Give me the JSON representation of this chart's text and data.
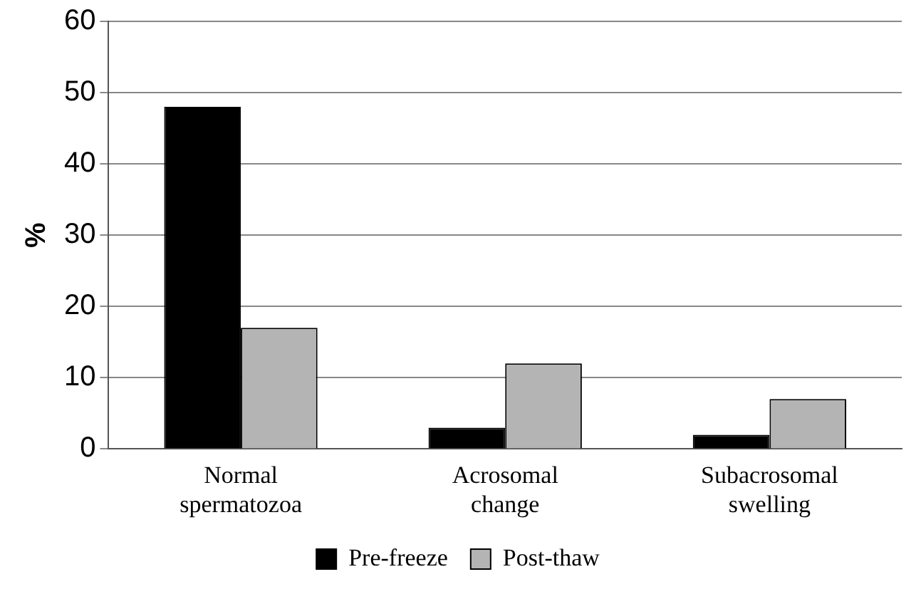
{
  "chart_data": {
    "type": "bar",
    "ylabel": "%",
    "categories": [
      "Normal spermatozoa",
      "Acrosomal change",
      "Subacrosomal swelling"
    ],
    "series": [
      {
        "name": "Pre-freeze",
        "color": "#000000",
        "values": [
          48,
          3,
          2
        ]
      },
      {
        "name": "Post-thaw",
        "color": "#b4b4b4",
        "values": [
          17,
          12,
          7
        ]
      }
    ],
    "ylim": [
      0,
      60
    ],
    "yticks": [
      0,
      10,
      20,
      30,
      40,
      50,
      60
    ],
    "grid": "y",
    "legend": "bottom"
  }
}
